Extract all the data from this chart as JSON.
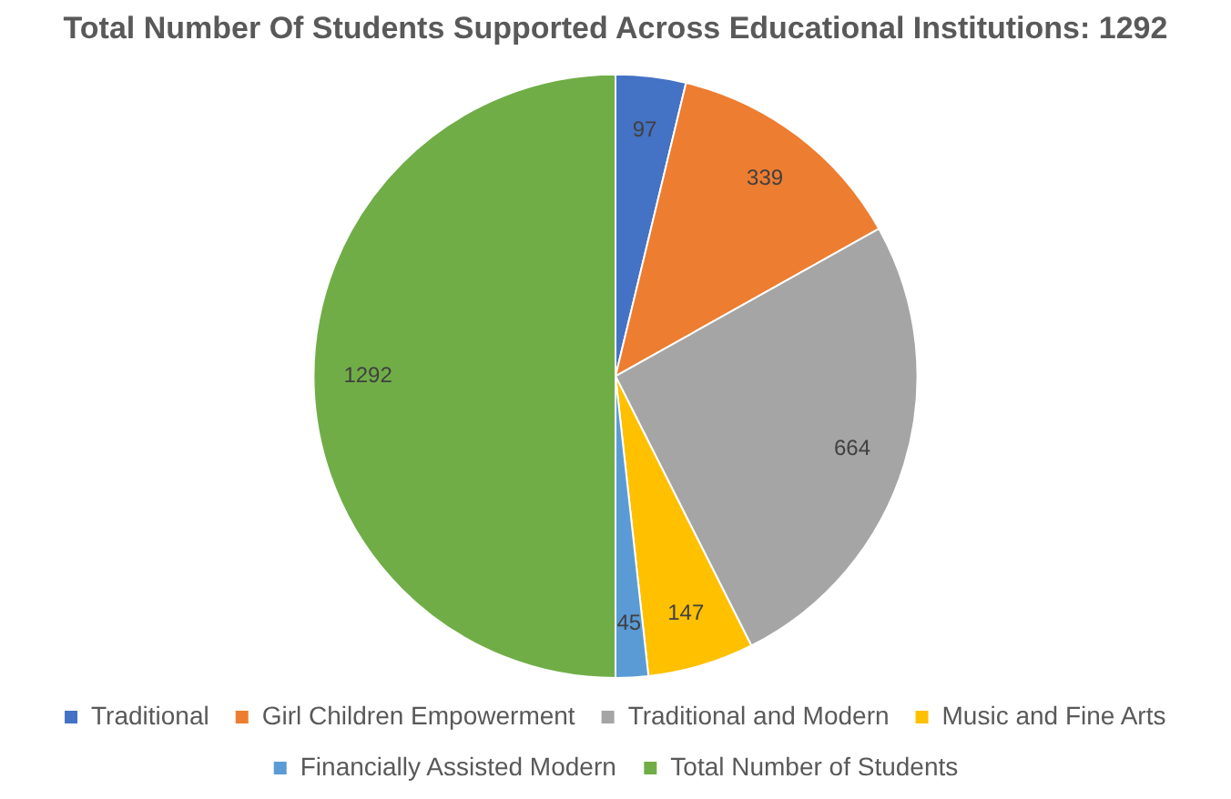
{
  "chart_data": {
    "type": "pie",
    "title": "Total Number Of Students Supported Across Educational Institutions: 1292",
    "categories": [
      "Traditional",
      "Girl Children Empowerment",
      "Traditional and Modern",
      "Music and Fine Arts",
      "Financially Assisted Modern",
      "Total Number of Students"
    ],
    "values": [
      97,
      339,
      664,
      147,
      45,
      1292
    ],
    "colors": [
      "#4472c4",
      "#ed7d31",
      "#a5a5a5",
      "#ffc000",
      "#5b9bd5",
      "#70ad47"
    ],
    "data_labels": true,
    "legend": "bottom"
  }
}
